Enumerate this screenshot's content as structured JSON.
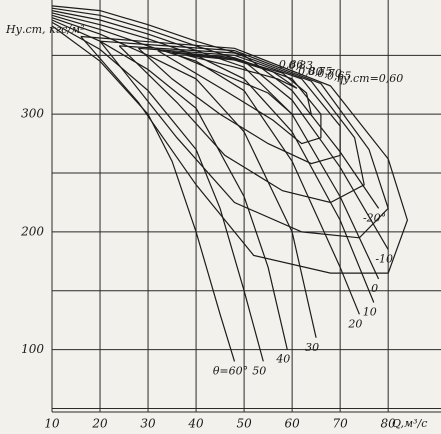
{
  "chart_data": {
    "type": "line",
    "y_label": "Hу.ст, кгс/м²",
    "x_label": "Q,м³/с",
    "xlim": [
      10,
      91
    ],
    "ylim": [
      47,
      397
    ],
    "xticks": [
      10,
      20,
      30,
      40,
      50,
      60,
      70,
      80
    ],
    "yticks": [
      100,
      200,
      300
    ],
    "y_minor_grid": [
      50,
      150,
      250,
      350
    ],
    "grid": true,
    "color": "#1c1c1c",
    "series": [
      {
        "name": "θ=60°",
        "x": [
          10,
          20,
          30,
          35,
          40,
          45,
          48
        ],
        "values": [
          375,
          345,
          300,
          260,
          200,
          130,
          90
        ]
      },
      {
        "name": "50",
        "x": [
          10,
          20,
          30,
          40,
          45,
          50,
          54
        ],
        "values": [
          378,
          355,
          320,
          270,
          220,
          150,
          90
        ]
      },
      {
        "name": "40",
        "x": [
          10,
          20,
          30,
          40,
          50,
          55,
          59
        ],
        "values": [
          380,
          362,
          338,
          305,
          230,
          170,
          100
        ]
      },
      {
        "name": "30",
        "x": [
          10,
          20,
          30,
          40,
          50,
          60,
          65
        ],
        "values": [
          382,
          368,
          350,
          330,
          285,
          200,
          110
        ]
      },
      {
        "name": "20",
        "x": [
          10,
          20,
          30,
          40,
          50,
          60,
          70,
          74
        ],
        "values": [
          384,
          372,
          358,
          345,
          320,
          260,
          170,
          130
        ]
      },
      {
        "name": "10",
        "x": [
          10,
          20,
          30,
          40,
          50,
          60,
          70,
          77
        ],
        "values": [
          386,
          376,
          364,
          350,
          330,
          285,
          210,
          140
        ]
      },
      {
        "name": "0",
        "x": [
          10,
          20,
          30,
          40,
          50,
          60,
          70,
          78
        ],
        "values": [
          388,
          380,
          368,
          354,
          340,
          300,
          230,
          160
        ]
      },
      {
        "name": "-10",
        "x": [
          10,
          20,
          30,
          40,
          50,
          60,
          70,
          80
        ],
        "values": [
          390,
          384,
          372,
          358,
          345,
          312,
          255,
          185
        ]
      },
      {
        "name": "-20°",
        "x": [
          10,
          20,
          30,
          40,
          50,
          60,
          70,
          78
        ],
        "values": [
          392,
          388,
          376,
          362,
          350,
          320,
          268,
          220
        ]
      }
    ],
    "contours": [
      {
        "name": "0,86",
        "x": [
          38,
          48,
          56,
          61,
          57,
          48,
          38
        ],
        "values": [
          350,
          346,
          336,
          322,
          330,
          340,
          350
        ]
      },
      {
        "name": "0,83",
        "x": [
          35,
          48,
          58,
          63,
          64,
          60,
          55,
          45,
          35
        ],
        "values": [
          352,
          347,
          335,
          318,
          300,
          300,
          318,
          335,
          352
        ]
      },
      {
        "name": "0,80",
        "x": [
          32,
          48,
          60,
          66,
          66,
          62,
          56,
          46,
          32
        ],
        "values": [
          354,
          348,
          330,
          300,
          280,
          275,
          295,
          320,
          354
        ]
      },
      {
        "name": "0,75",
        "x": [
          28,
          48,
          62,
          70,
          70,
          64,
          55,
          45,
          35,
          28
        ],
        "values": [
          356,
          350,
          330,
          290,
          265,
          258,
          275,
          300,
          330,
          356
        ]
      },
      {
        "name": "0,70",
        "x": [
          24,
          48,
          64,
          73,
          75,
          68,
          58,
          46,
          36,
          24
        ],
        "values": [
          358,
          352,
          328,
          280,
          240,
          225,
          235,
          265,
          310,
          358
        ]
      },
      {
        "name": "0,65",
        "x": [
          20,
          48,
          66,
          76,
          80,
          74,
          62,
          48,
          36,
          20
        ],
        "values": [
          362,
          354,
          326,
          270,
          220,
          195,
          200,
          225,
          280,
          362
        ]
      },
      {
        "name": "ηу.ст=0,60",
        "x": [
          16,
          48,
          68,
          80,
          84,
          80,
          68,
          52,
          40,
          28,
          16
        ],
        "values": [
          366,
          356,
          324,
          262,
          210,
          165,
          165,
          180,
          240,
          310,
          366
        ]
      }
    ]
  }
}
